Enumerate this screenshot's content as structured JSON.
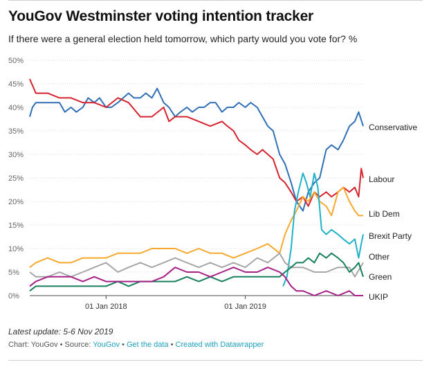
{
  "title": "YouGov Westminster voting intention tracker",
  "subtitle": "If there were a general election held tomorrow, which party would you vote for? %",
  "footer": {
    "latest_update": "Latest update: 5-6 Nov 2019",
    "source_prefix": "Chart: YouGov • Source: ",
    "source_name": "YouGov",
    "sep1": " • ",
    "get_data": "Get the data",
    "sep2": " • ",
    "created_with": "Created with Datawrapper"
  },
  "chart_data": {
    "type": "line",
    "title": "YouGov Westminster voting intention tracker",
    "ylabel": "",
    "xlabel": "",
    "ylim": [
      0,
      50
    ],
    "xlim": [
      "2017-06-15",
      "2019-11-06"
    ],
    "yticks": [
      0,
      5,
      10,
      15,
      20,
      25,
      30,
      35,
      40,
      45,
      50
    ],
    "ytick_labels": [
      "0%",
      "5%",
      "10%",
      "15%",
      "20%",
      "25%",
      "30%",
      "35%",
      "40%",
      "45%",
      "50%"
    ],
    "xticks": [
      "2018-01-01",
      "2019-01-01"
    ],
    "xtick_labels": [
      "01 Jan 2018",
      "01 Jan 2019"
    ],
    "grid": true,
    "legend": "direct labels at right",
    "series": [
      {
        "name": "Conservative",
        "color": "#2f6fb5",
        "points": [
          [
            "2017-06-15",
            38
          ],
          [
            "2017-06-22",
            40
          ],
          [
            "2017-07-01",
            41
          ],
          [
            "2017-08-01",
            41
          ],
          [
            "2017-09-01",
            41
          ],
          [
            "2017-09-15",
            39
          ],
          [
            "2017-10-01",
            40
          ],
          [
            "2017-10-15",
            39
          ],
          [
            "2017-11-01",
            40
          ],
          [
            "2017-11-15",
            42
          ],
          [
            "2017-12-01",
            41
          ],
          [
            "2017-12-15",
            42
          ],
          [
            "2018-01-01",
            40
          ],
          [
            "2018-01-15",
            40
          ],
          [
            "2018-02-01",
            41
          ],
          [
            "2018-02-15",
            42
          ],
          [
            "2018-03-01",
            43
          ],
          [
            "2018-03-15",
            42
          ],
          [
            "2018-04-01",
            42
          ],
          [
            "2018-04-15",
            43
          ],
          [
            "2018-05-01",
            42
          ],
          [
            "2018-05-15",
            44
          ],
          [
            "2018-06-01",
            41
          ],
          [
            "2018-06-15",
            40
          ],
          [
            "2018-07-01",
            38
          ],
          [
            "2018-07-15",
            39
          ],
          [
            "2018-08-01",
            40
          ],
          [
            "2018-08-15",
            39
          ],
          [
            "2018-09-01",
            40
          ],
          [
            "2018-09-15",
            40
          ],
          [
            "2018-10-01",
            41
          ],
          [
            "2018-10-15",
            41
          ],
          [
            "2018-11-01",
            39
          ],
          [
            "2018-11-15",
            40
          ],
          [
            "2018-12-01",
            40
          ],
          [
            "2018-12-15",
            41
          ],
          [
            "2019-01-01",
            40
          ],
          [
            "2019-01-15",
            41
          ],
          [
            "2019-02-01",
            40
          ],
          [
            "2019-02-15",
            38
          ],
          [
            "2019-03-01",
            36
          ],
          [
            "2019-03-15",
            35
          ],
          [
            "2019-04-01",
            30
          ],
          [
            "2019-04-15",
            28
          ],
          [
            "2019-05-01",
            24
          ],
          [
            "2019-05-15",
            20
          ],
          [
            "2019-06-01",
            18
          ],
          [
            "2019-06-15",
            22
          ],
          [
            "2019-07-01",
            24
          ],
          [
            "2019-07-15",
            25
          ],
          [
            "2019-08-01",
            31
          ],
          [
            "2019-08-15",
            32
          ],
          [
            "2019-09-01",
            31
          ],
          [
            "2019-09-15",
            33
          ],
          [
            "2019-10-01",
            36
          ],
          [
            "2019-10-15",
            37
          ],
          [
            "2019-10-25",
            39
          ],
          [
            "2019-11-06",
            36
          ]
        ]
      },
      {
        "name": "Labour",
        "color": "#d5232f",
        "points": [
          [
            "2017-06-15",
            46
          ],
          [
            "2017-07-01",
            43
          ],
          [
            "2017-08-01",
            43
          ],
          [
            "2017-09-01",
            42
          ],
          [
            "2017-10-01",
            42
          ],
          [
            "2017-11-01",
            41
          ],
          [
            "2017-12-01",
            41
          ],
          [
            "2018-01-01",
            40
          ],
          [
            "2018-02-01",
            42
          ],
          [
            "2018-03-01",
            41
          ],
          [
            "2018-04-01",
            38
          ],
          [
            "2018-05-01",
            38
          ],
          [
            "2018-06-01",
            40
          ],
          [
            "2018-06-15",
            37
          ],
          [
            "2018-07-01",
            38
          ],
          [
            "2018-08-01",
            38
          ],
          [
            "2018-09-01",
            37
          ],
          [
            "2018-10-01",
            36
          ],
          [
            "2018-11-01",
            37
          ],
          [
            "2018-11-15",
            36
          ],
          [
            "2018-12-01",
            35
          ],
          [
            "2018-12-15",
            33
          ],
          [
            "2019-01-01",
            32
          ],
          [
            "2019-01-15",
            31
          ],
          [
            "2019-02-01",
            30
          ],
          [
            "2019-02-15",
            31
          ],
          [
            "2019-03-01",
            30
          ],
          [
            "2019-03-15",
            29
          ],
          [
            "2019-04-01",
            25
          ],
          [
            "2019-04-15",
            24
          ],
          [
            "2019-05-01",
            22
          ],
          [
            "2019-05-15",
            20
          ],
          [
            "2019-06-01",
            21
          ],
          [
            "2019-06-15",
            19
          ],
          [
            "2019-07-01",
            22
          ],
          [
            "2019-07-15",
            21
          ],
          [
            "2019-08-01",
            22
          ],
          [
            "2019-08-15",
            21
          ],
          [
            "2019-09-01",
            22
          ],
          [
            "2019-09-15",
            23
          ],
          [
            "2019-10-01",
            22
          ],
          [
            "2019-10-15",
            23
          ],
          [
            "2019-10-25",
            21
          ],
          [
            "2019-11-01",
            27
          ],
          [
            "2019-11-06",
            25
          ]
        ]
      },
      {
        "name": "Lib Dem",
        "color": "#f7a82e",
        "points": [
          [
            "2017-06-15",
            6
          ],
          [
            "2017-07-01",
            7
          ],
          [
            "2017-08-01",
            8
          ],
          [
            "2017-09-01",
            7
          ],
          [
            "2017-10-01",
            7
          ],
          [
            "2017-11-01",
            8
          ],
          [
            "2017-12-01",
            8
          ],
          [
            "2018-01-01",
            8
          ],
          [
            "2018-02-01",
            9
          ],
          [
            "2018-03-01",
            9
          ],
          [
            "2018-04-01",
            9
          ],
          [
            "2018-05-01",
            10
          ],
          [
            "2018-06-01",
            10
          ],
          [
            "2018-07-01",
            10
          ],
          [
            "2018-08-01",
            9
          ],
          [
            "2018-09-01",
            10
          ],
          [
            "2018-10-01",
            9
          ],
          [
            "2018-11-01",
            9
          ],
          [
            "2018-12-01",
            8
          ],
          [
            "2019-01-01",
            9
          ],
          [
            "2019-02-01",
            10
          ],
          [
            "2019-03-01",
            11
          ],
          [
            "2019-04-01",
            9
          ],
          [
            "2019-04-15",
            13
          ],
          [
            "2019-05-01",
            16
          ],
          [
            "2019-05-15",
            18
          ],
          [
            "2019-06-01",
            21
          ],
          [
            "2019-06-15",
            20
          ],
          [
            "2019-07-01",
            22
          ],
          [
            "2019-07-15",
            20
          ],
          [
            "2019-08-01",
            19
          ],
          [
            "2019-08-15",
            17
          ],
          [
            "2019-09-01",
            22
          ],
          [
            "2019-09-15",
            23
          ],
          [
            "2019-10-01",
            20
          ],
          [
            "2019-10-15",
            18
          ],
          [
            "2019-10-25",
            17
          ],
          [
            "2019-11-06",
            17
          ]
        ]
      },
      {
        "name": "Brexit Party",
        "color": "#1eb1c7",
        "points": [
          [
            "2019-04-10",
            2
          ],
          [
            "2019-04-20",
            4
          ],
          [
            "2019-05-01",
            10
          ],
          [
            "2019-05-10",
            18
          ],
          [
            "2019-05-20",
            22
          ],
          [
            "2019-06-01",
            26
          ],
          [
            "2019-06-10",
            24
          ],
          [
            "2019-06-20",
            21
          ],
          [
            "2019-07-01",
            26
          ],
          [
            "2019-07-10",
            23
          ],
          [
            "2019-07-20",
            14
          ],
          [
            "2019-08-01",
            13
          ],
          [
            "2019-08-15",
            14
          ],
          [
            "2019-09-01",
            13
          ],
          [
            "2019-09-15",
            12
          ],
          [
            "2019-10-01",
            11
          ],
          [
            "2019-10-15",
            12
          ],
          [
            "2019-10-25",
            8
          ],
          [
            "2019-11-01",
            11
          ],
          [
            "2019-11-06",
            13
          ]
        ]
      },
      {
        "name": "Other",
        "color": "#a6a6a6",
        "points": [
          [
            "2017-06-15",
            5
          ],
          [
            "2017-07-01",
            4
          ],
          [
            "2017-08-01",
            4
          ],
          [
            "2017-09-01",
            5
          ],
          [
            "2017-10-01",
            4
          ],
          [
            "2017-11-01",
            5
          ],
          [
            "2017-12-01",
            6
          ],
          [
            "2018-01-01",
            7
          ],
          [
            "2018-02-01",
            5
          ],
          [
            "2018-03-01",
            6
          ],
          [
            "2018-04-01",
            7
          ],
          [
            "2018-05-01",
            6
          ],
          [
            "2018-06-01",
            7
          ],
          [
            "2018-07-01",
            8
          ],
          [
            "2018-08-01",
            7
          ],
          [
            "2018-09-01",
            6
          ],
          [
            "2018-10-01",
            7
          ],
          [
            "2018-11-01",
            6
          ],
          [
            "2018-12-01",
            7
          ],
          [
            "2019-01-01",
            6
          ],
          [
            "2019-02-01",
            8
          ],
          [
            "2019-03-01",
            7
          ],
          [
            "2019-04-01",
            9
          ],
          [
            "2019-04-15",
            7
          ],
          [
            "2019-05-01",
            6
          ],
          [
            "2019-06-01",
            6
          ],
          [
            "2019-07-01",
            5
          ],
          [
            "2019-08-01",
            5
          ],
          [
            "2019-09-01",
            6
          ],
          [
            "2019-10-01",
            6
          ],
          [
            "2019-10-15",
            4
          ],
          [
            "2019-11-06",
            7
          ]
        ]
      },
      {
        "name": "Green",
        "color": "#177f5d",
        "points": [
          [
            "2017-06-15",
            1
          ],
          [
            "2017-07-01",
            2
          ],
          [
            "2017-08-01",
            2
          ],
          [
            "2017-09-01",
            2
          ],
          [
            "2017-10-01",
            2
          ],
          [
            "2017-11-01",
            2
          ],
          [
            "2017-12-01",
            2
          ],
          [
            "2018-01-01",
            2
          ],
          [
            "2018-02-01",
            3
          ],
          [
            "2018-03-01",
            2
          ],
          [
            "2018-04-01",
            3
          ],
          [
            "2018-05-01",
            3
          ],
          [
            "2018-06-01",
            3
          ],
          [
            "2018-07-01",
            3
          ],
          [
            "2018-08-01",
            4
          ],
          [
            "2018-09-01",
            3
          ],
          [
            "2018-10-01",
            4
          ],
          [
            "2018-11-01",
            3
          ],
          [
            "2018-12-01",
            4
          ],
          [
            "2019-01-01",
            4
          ],
          [
            "2019-02-01",
            4
          ],
          [
            "2019-03-01",
            4
          ],
          [
            "2019-04-01",
            4
          ],
          [
            "2019-04-15",
            5
          ],
          [
            "2019-05-01",
            6
          ],
          [
            "2019-05-15",
            7
          ],
          [
            "2019-06-01",
            7
          ],
          [
            "2019-06-15",
            8
          ],
          [
            "2019-07-01",
            7
          ],
          [
            "2019-07-15",
            9
          ],
          [
            "2019-08-01",
            8
          ],
          [
            "2019-08-15",
            9
          ],
          [
            "2019-09-01",
            8
          ],
          [
            "2019-09-15",
            7
          ],
          [
            "2019-10-01",
            5
          ],
          [
            "2019-10-15",
            6
          ],
          [
            "2019-10-25",
            7
          ],
          [
            "2019-11-06",
            4
          ]
        ]
      },
      {
        "name": "UKIP",
        "color": "#a51f86",
        "points": [
          [
            "2017-06-15",
            2
          ],
          [
            "2017-07-01",
            3
          ],
          [
            "2017-08-01",
            4
          ],
          [
            "2017-09-01",
            4
          ],
          [
            "2017-10-01",
            4
          ],
          [
            "2017-11-01",
            3
          ],
          [
            "2017-12-01",
            4
          ],
          [
            "2018-01-01",
            3
          ],
          [
            "2018-02-01",
            3
          ],
          [
            "2018-03-01",
            3
          ],
          [
            "2018-04-01",
            3
          ],
          [
            "2018-05-01",
            3
          ],
          [
            "2018-06-01",
            4
          ],
          [
            "2018-07-01",
            6
          ],
          [
            "2018-08-01",
            5
          ],
          [
            "2018-09-01",
            5
          ],
          [
            "2018-10-01",
            4
          ],
          [
            "2018-11-01",
            5
          ],
          [
            "2018-12-01",
            6
          ],
          [
            "2019-01-01",
            5
          ],
          [
            "2019-02-01",
            5
          ],
          [
            "2019-03-01",
            6
          ],
          [
            "2019-04-01",
            5
          ],
          [
            "2019-04-15",
            4
          ],
          [
            "2019-05-01",
            2
          ],
          [
            "2019-05-15",
            1
          ],
          [
            "2019-06-01",
            1
          ],
          [
            "2019-07-01",
            0
          ],
          [
            "2019-08-01",
            1
          ],
          [
            "2019-09-01",
            0
          ],
          [
            "2019-10-01",
            1
          ],
          [
            "2019-10-15",
            0
          ],
          [
            "2019-11-06",
            0
          ]
        ]
      }
    ]
  }
}
